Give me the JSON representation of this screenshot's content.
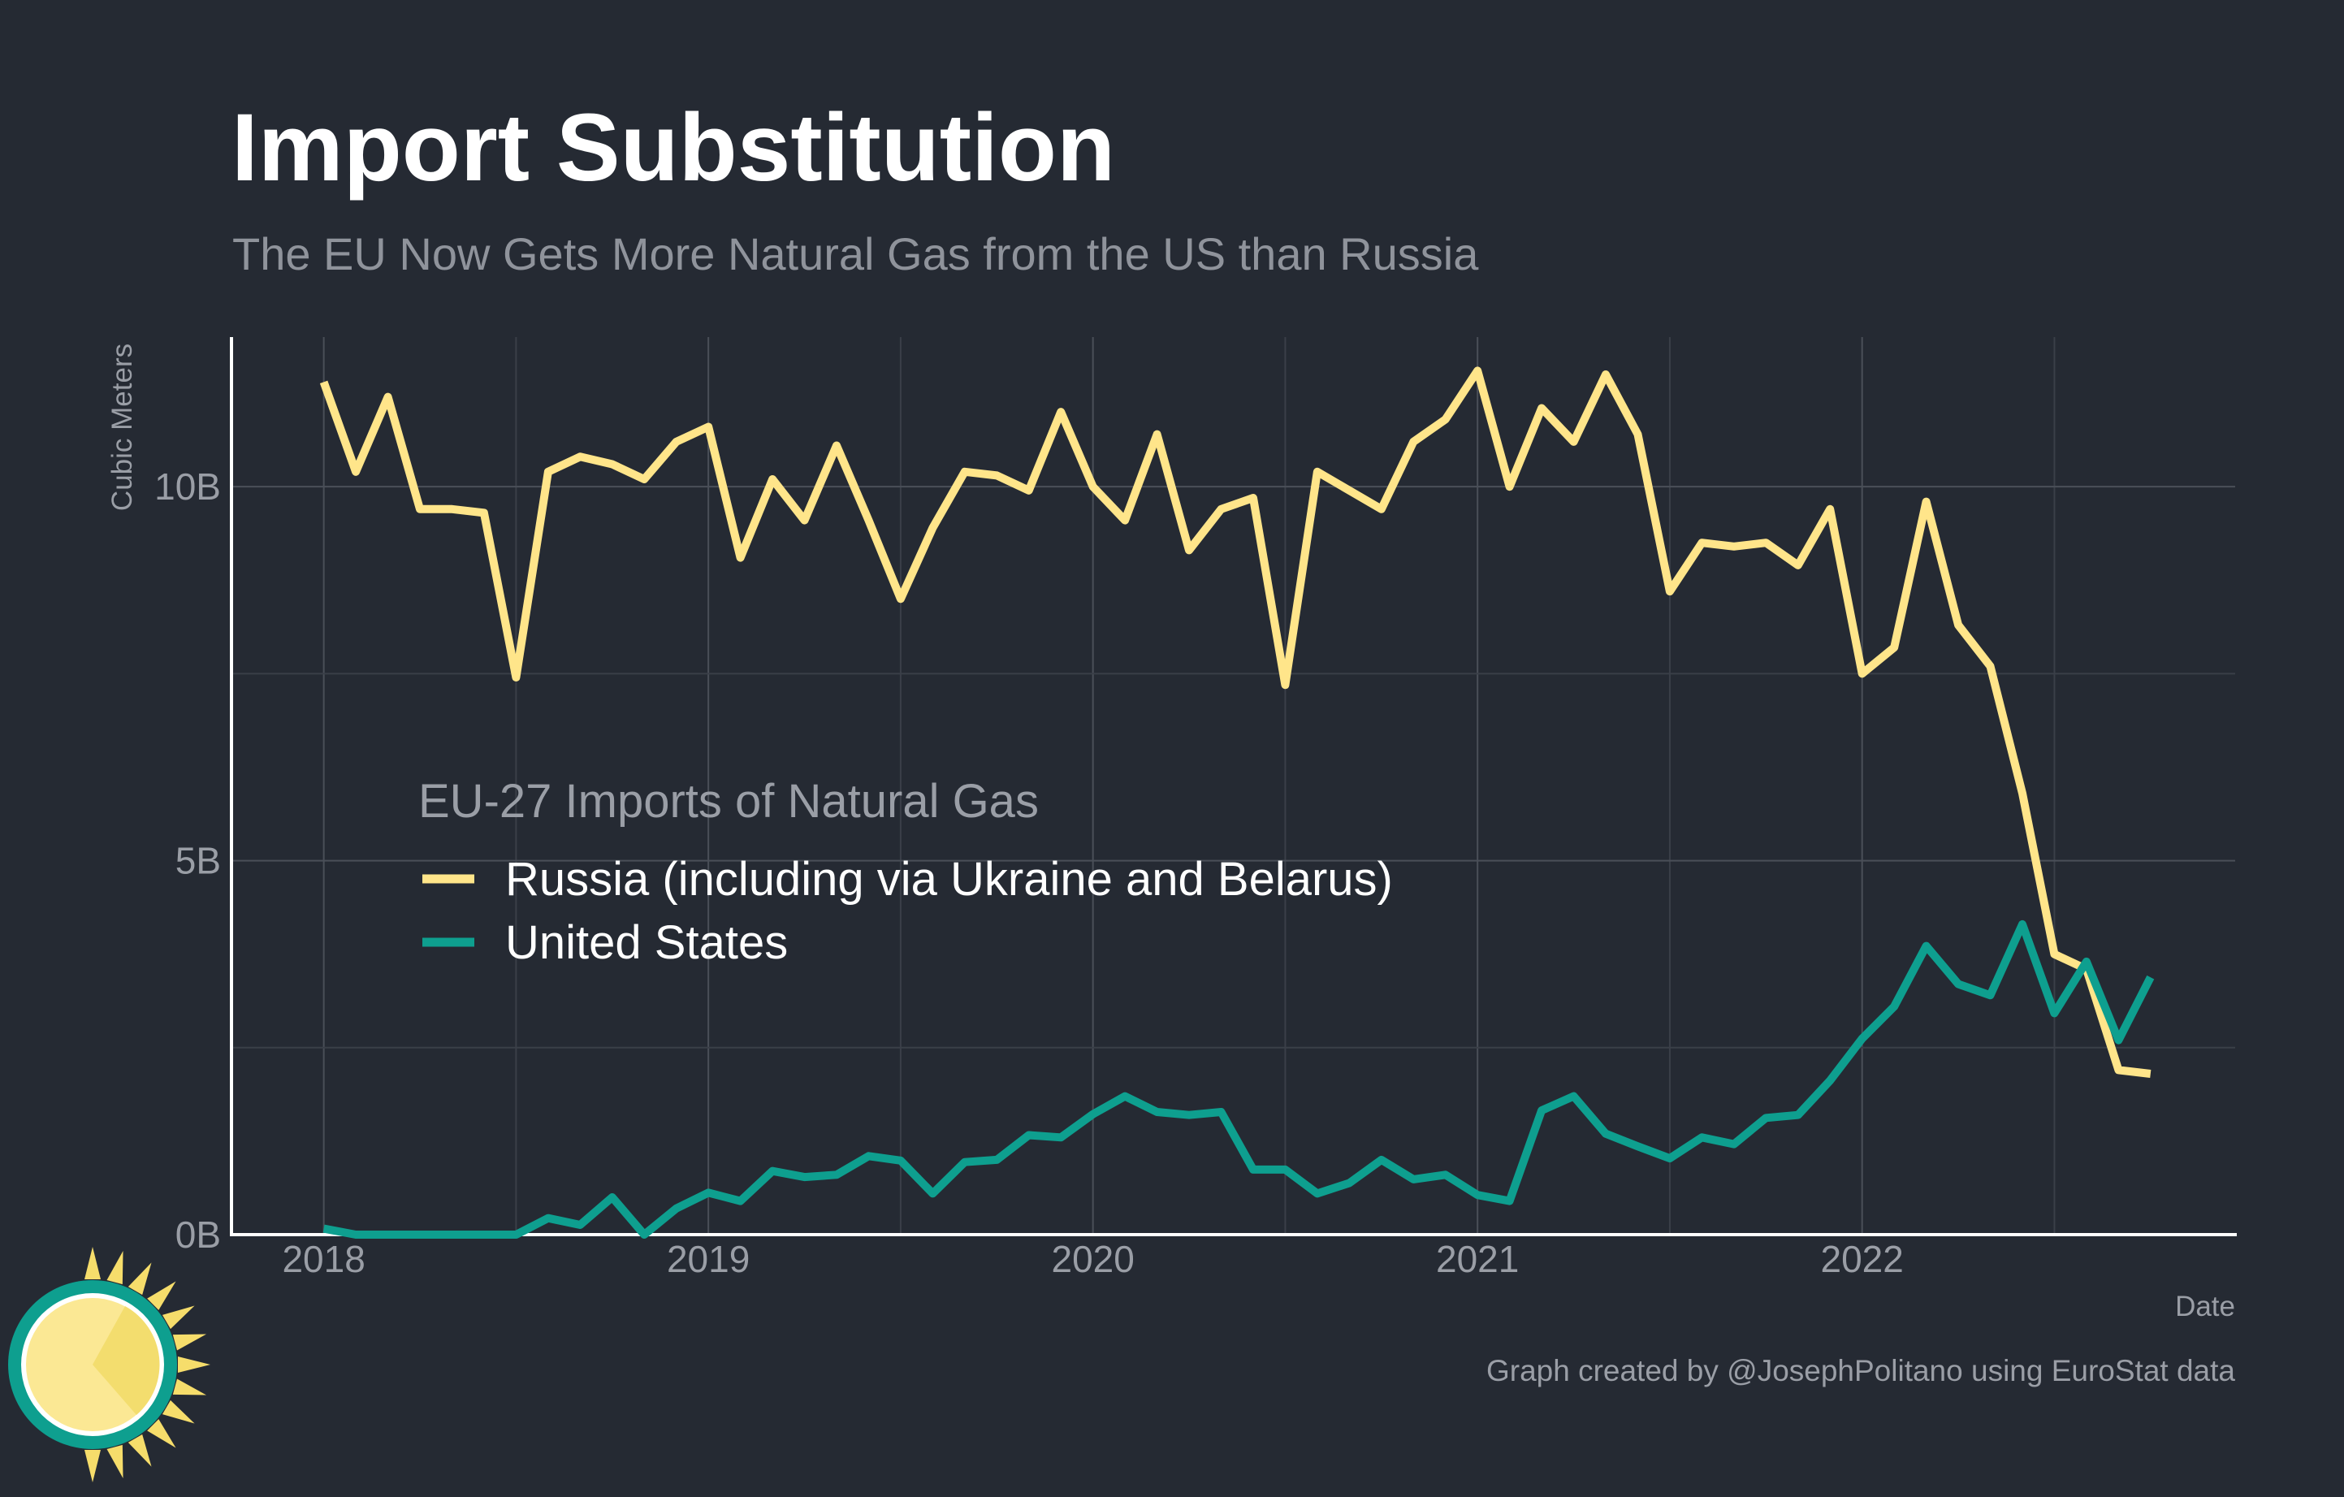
{
  "title": "Import Substitution",
  "subtitle": "The EU Now Gets More Natural Gas from the US than Russia",
  "caption": "Graph created by @JosephPolitano using EuroStat data",
  "chart_data": {
    "type": "line",
    "xlabel": "Date",
    "ylabel": "Cubic Meters",
    "xlim": [
      2017.76,
      2022.97
    ],
    "ylim": [
      0,
      12
    ],
    "x_ticks": [
      2018,
      2019,
      2020,
      2021,
      2022
    ],
    "x_tick_labels": [
      "2018",
      "2019",
      "2020",
      "2021",
      "2022"
    ],
    "y_ticks": [
      0,
      5,
      10
    ],
    "y_tick_labels": [
      "0B",
      "5B",
      "10B"
    ],
    "grid": true,
    "legend_title": "EU-27 Imports of Natural Gas",
    "legend_position": "center-left",
    "series": [
      {
        "name": "Russia (including via Ukraine and Belarus)",
        "color": "#ffe58a",
        "start": "2018-01",
        "values": [
          11.4,
          10.2,
          11.2,
          9.7,
          9.7,
          9.65,
          7.45,
          10.2,
          10.4,
          10.3,
          10.1,
          10.6,
          10.8,
          9.05,
          10.1,
          9.55,
          10.55,
          9.55,
          8.5,
          9.45,
          10.2,
          10.15,
          9.95,
          11.0,
          10.0,
          9.55,
          10.7,
          9.15,
          9.7,
          9.85,
          7.35,
          10.2,
          9.95,
          9.7,
          10.6,
          10.9,
          11.55,
          10.0,
          11.05,
          10.6,
          11.5,
          10.7,
          8.6,
          9.25,
          9.2,
          9.25,
          8.95,
          9.7,
          7.5,
          7.85,
          9.8,
          8.15,
          7.6,
          5.9,
          3.75,
          3.55,
          2.2,
          2.15
        ],
        "end": "2022-10"
      },
      {
        "name": "United States",
        "color": "#0e9f8f",
        "start": "2018-01",
        "values": [
          0.08,
          0.0,
          0.0,
          0.0,
          0.0,
          0.0,
          0.0,
          0.22,
          0.13,
          0.5,
          0.0,
          0.35,
          0.56,
          0.45,
          0.85,
          0.77,
          0.8,
          1.05,
          0.99,
          0.55,
          0.97,
          1.0,
          1.33,
          1.3,
          1.61,
          1.85,
          1.64,
          1.6,
          1.64,
          0.87,
          0.87,
          0.55,
          0.69,
          1.0,
          0.74,
          0.8,
          0.53,
          0.45,
          1.66,
          1.85,
          1.35,
          1.18,
          1.02,
          1.3,
          1.21,
          1.56,
          1.6,
          2.06,
          2.62,
          3.05,
          3.86,
          3.35,
          3.2,
          4.15,
          2.96,
          3.65,
          2.6,
          3.44
        ],
        "end": "2022-10"
      }
    ]
  }
}
